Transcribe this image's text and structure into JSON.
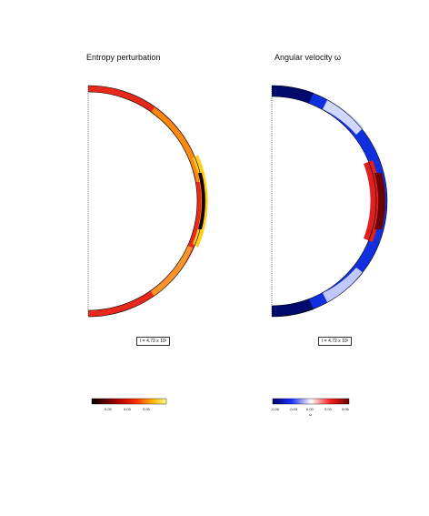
{
  "chart_data": [
    {
      "type": "heatmap",
      "title": "Entropy perturbation",
      "time_label": "t = 4.72 x 10²",
      "colormap": "hot",
      "colorbar_ticks": [
        "0.00",
        "0.03",
        "0.05"
      ],
      "colorbar_symbol": "",
      "colors": {
        "low": "#000000",
        "mid": "#e00000",
        "high": "#ffff40"
      }
    },
    {
      "type": "heatmap",
      "title": "Angular velocity ω",
      "time_label": "t = 4.72 x 10²",
      "colormap": "blue-white-red",
      "colorbar_ticks": [
        "-0.06",
        "-0.03",
        "0.00",
        "0.03",
        "0.06"
      ],
      "colorbar_symbol": "ω",
      "colors": {
        "low": "#00006a",
        "mid": "#ffffff",
        "high": "#8a0000"
      }
    }
  ]
}
